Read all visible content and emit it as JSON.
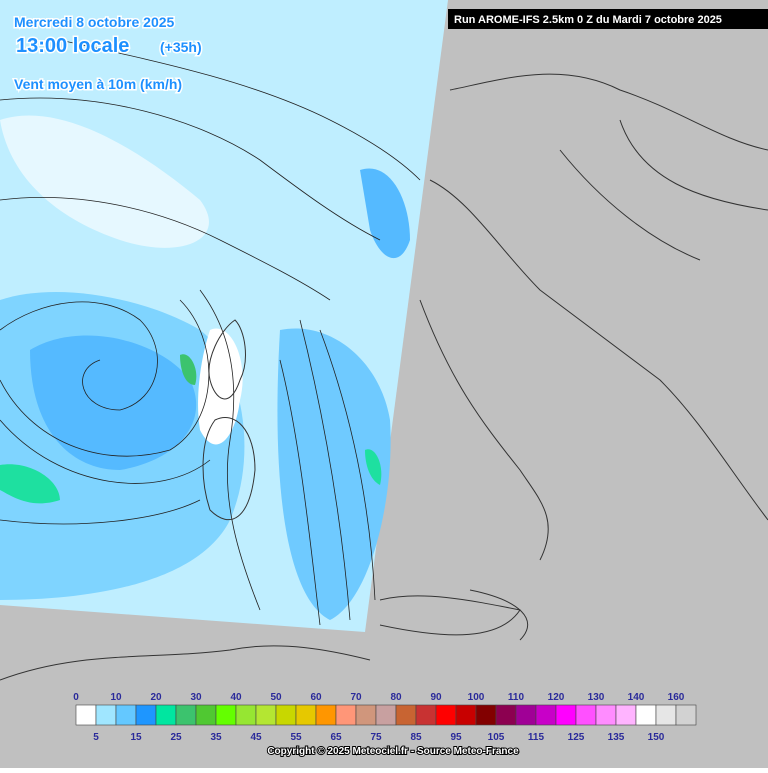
{
  "header": {
    "date": "Mercredi 8 octobre 2025",
    "time": "13:00 locale",
    "lead": "(+35h)",
    "field": "Vent moyen à 10m (km/h)",
    "run": "Run AROME-IFS 2.5km 0 Z du Mardi 7 octobre 2025"
  },
  "legend": {
    "top_labels": [
      "0",
      "10",
      "20",
      "30",
      "40",
      "50",
      "60",
      "70",
      "80",
      "90",
      "100",
      "110",
      "120",
      "130",
      "140",
      "160"
    ],
    "bottom_labels": [
      "5",
      "15",
      "25",
      "35",
      "45",
      "55",
      "65",
      "75",
      "85",
      "95",
      "105",
      "115",
      "125",
      "135",
      "150"
    ],
    "colors": [
      "#ffffff",
      "#a0e6ff",
      "#64c8ff",
      "#1e96ff",
      "#00e6a0",
      "#3cc36e",
      "#50c832",
      "#64ff00",
      "#96e632",
      "#b4e632",
      "#c8d700",
      "#e6c800",
      "#ff9600",
      "#ff9678",
      "#d0967c",
      "#c8a0a0",
      "#c86432",
      "#c83232",
      "#ff0000",
      "#c80000",
      "#820000",
      "#8c0050",
      "#a00096",
      "#c800c8",
      "#ff00ff",
      "#ff50ff",
      "#ff8cff",
      "#ffb4ff",
      "#ffffff",
      "#e6e6e6",
      "#d2d2d2"
    ]
  },
  "footer": {
    "copyright": "Copyright © 2025 Meteociel.fr - Source Meteo-France"
  }
}
